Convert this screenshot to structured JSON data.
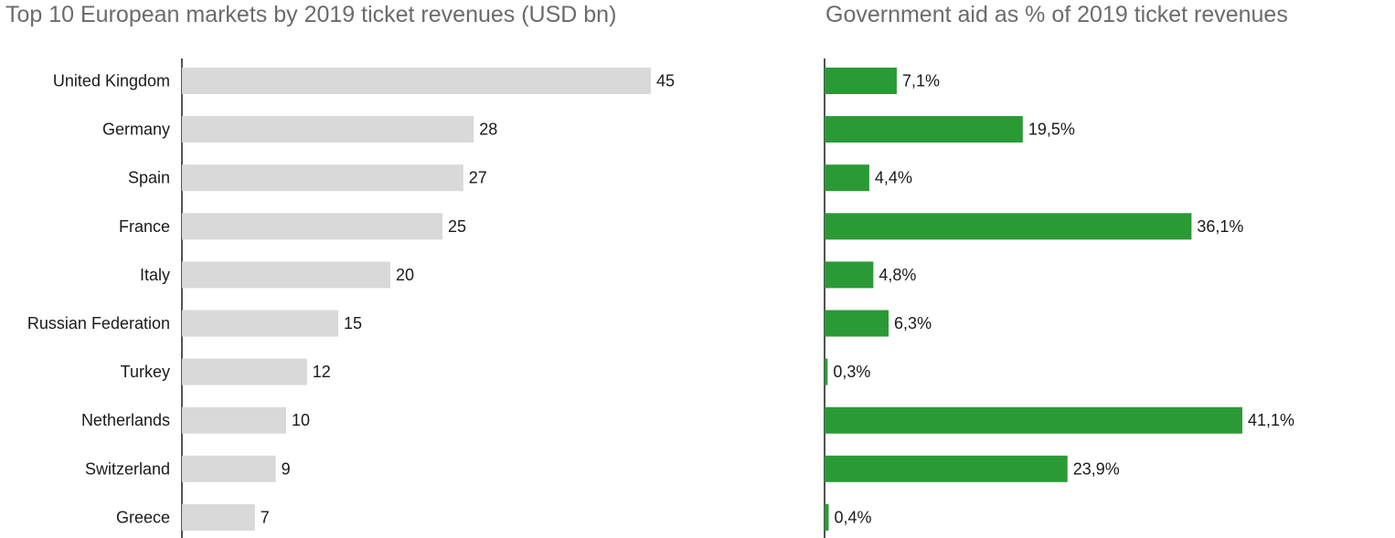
{
  "chart_data": [
    {
      "type": "bar",
      "orientation": "horizontal",
      "title": "Top 10 European markets by 2019 ticket revenues (USD bn)",
      "categories": [
        "United Kingdom",
        "Germany",
        "Spain",
        "France",
        "Italy",
        "Russian Federation",
        "Turkey",
        "Netherlands",
        "Switzerland",
        "Greece"
      ],
      "values": [
        45,
        28,
        27,
        25,
        20,
        15,
        12,
        10,
        9,
        7
      ],
      "value_labels": [
        "45",
        "28",
        "27",
        "25",
        "20",
        "15",
        "12",
        "10",
        "9",
        "7"
      ],
      "xlim": [
        0,
        45
      ],
      "grid": false,
      "color": "#d9d9d9"
    },
    {
      "type": "bar",
      "orientation": "horizontal",
      "title": "Government aid as % of 2019 ticket revenues",
      "categories": [
        "United Kingdom",
        "Germany",
        "Spain",
        "France",
        "Italy",
        "Russian Federation",
        "Turkey",
        "Netherlands",
        "Switzerland",
        "Greece"
      ],
      "values": [
        7.1,
        19.5,
        4.4,
        36.1,
        4.8,
        6.3,
        0.3,
        41.1,
        23.9,
        0.4
      ],
      "value_labels": [
        "7,1%",
        "19,5%",
        "4,4%",
        "36,1%",
        "4,8%",
        "6,3%",
        "0,3%",
        "41,1%",
        "23,9%",
        "0,4%"
      ],
      "xlim": [
        0,
        41.1
      ],
      "grid": false,
      "color": "#2a9a35"
    }
  ]
}
